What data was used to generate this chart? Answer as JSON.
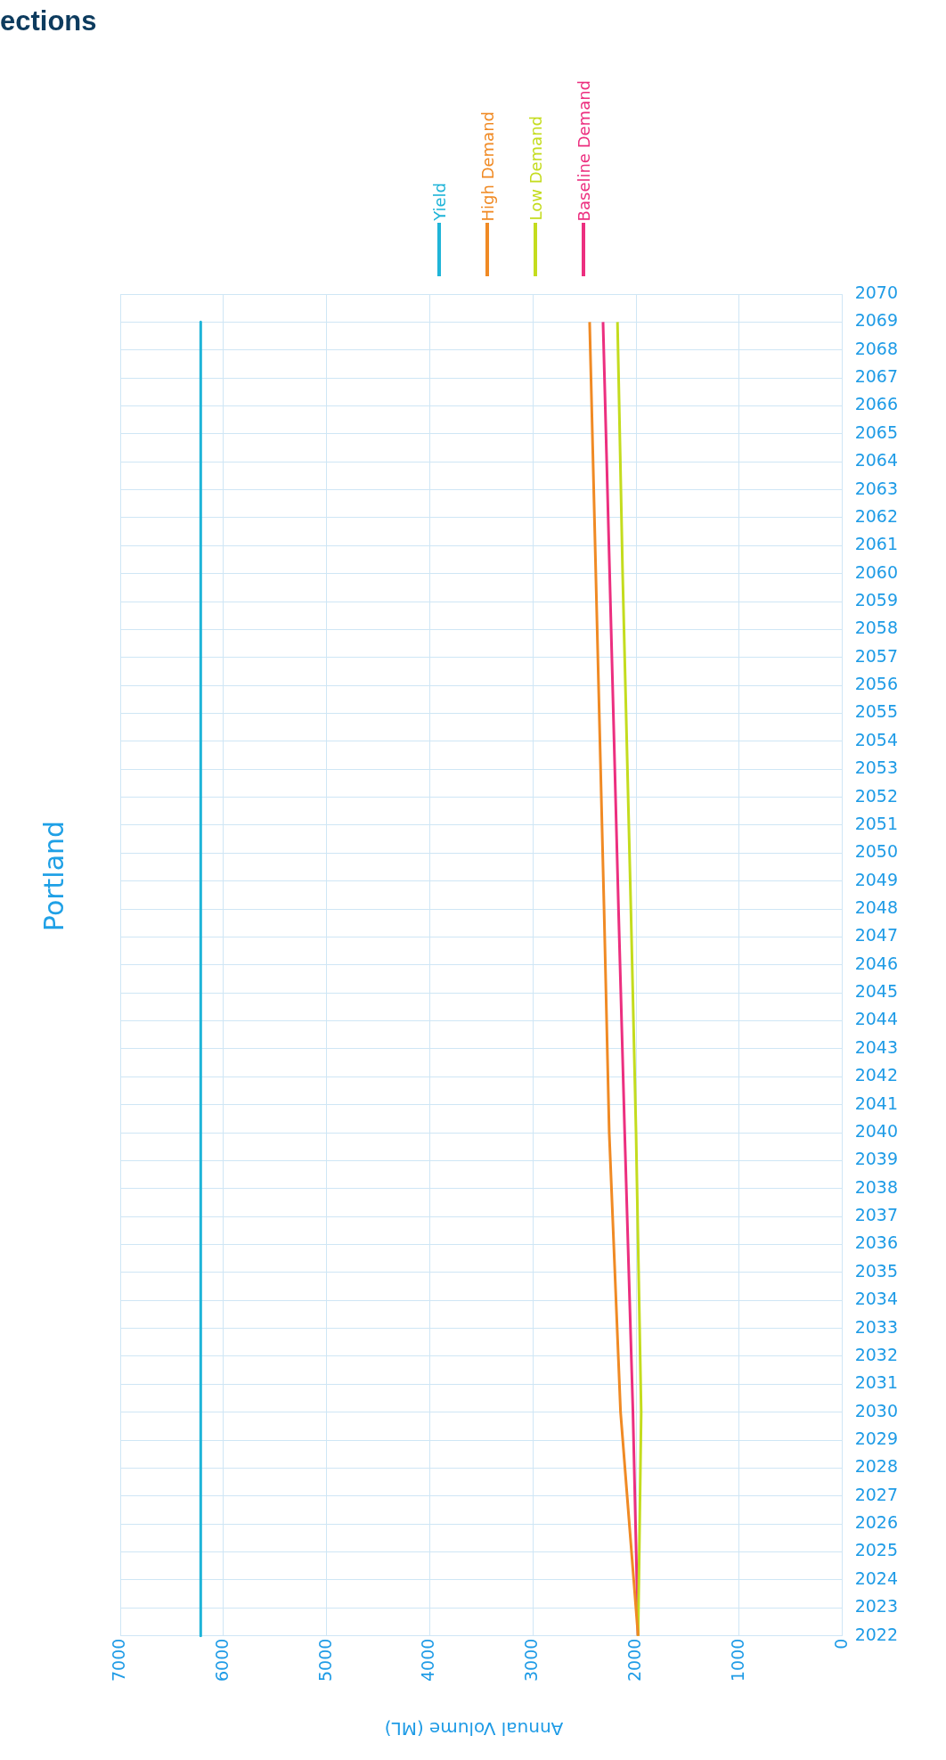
{
  "chart_data": {
    "type": "line",
    "orientation": "horizontal",
    "title": "Portland",
    "xlabel": "Annual Volume (ML)",
    "annotations": [
      "ections"
    ],
    "categories": [
      "2070",
      "2069",
      "2068",
      "2067",
      "2066",
      "2065",
      "2064",
      "2063",
      "2062",
      "2061",
      "2060",
      "2059",
      "2058",
      "2057",
      "2056",
      "2055",
      "2054",
      "2053",
      "2052",
      "2051",
      "2050",
      "2049",
      "2048",
      "2047",
      "2046",
      "2045",
      "2044",
      "2043",
      "2042",
      "2041",
      "2040",
      "2039",
      "2038",
      "2037",
      "2036",
      "2035",
      "2034",
      "2033",
      "2032",
      "2031",
      "2030",
      "2029",
      "2028",
      "2027",
      "2026",
      "2025",
      "2024",
      "2023",
      "2022"
    ],
    "xlim": [
      7000,
      0
    ],
    "xticks": [
      7000,
      6000,
      5000,
      4000,
      3000,
      2000,
      1000,
      0
    ],
    "grid": true,
    "legend": "top",
    "marker": "none",
    "line_style": "solid",
    "series": [
      {
        "name": "Yield",
        "color": "#1fb4d8",
        "values": [
          null,
          6220,
          null,
          null,
          null,
          null,
          null,
          null,
          null,
          null,
          null,
          null,
          null,
          null,
          null,
          null,
          null,
          null,
          null,
          null,
          null,
          null,
          null,
          null,
          null,
          null,
          null,
          null,
          null,
          null,
          null,
          null,
          null,
          null,
          null,
          null,
          null,
          null,
          null,
          null,
          null,
          null,
          null,
          null,
          null,
          null,
          null,
          null,
          6220
        ]
      },
      {
        "name": "High Demand",
        "color": "#f08a24",
        "values": [
          null,
          2450,
          null,
          null,
          null,
          null,
          null,
          null,
          null,
          null,
          null,
          null,
          null,
          null,
          null,
          null,
          null,
          null,
          null,
          null,
          null,
          null,
          2310,
          null,
          null,
          null,
          null,
          null,
          null,
          null,
          2260,
          null,
          null,
          null,
          null,
          null,
          null,
          null,
          null,
          null,
          2150,
          null,
          null,
          null,
          null,
          null,
          null,
          null,
          1980
        ]
      },
      {
        "name": "Low Demand",
        "color": "#c4dc1e",
        "values": [
          null,
          2180,
          null,
          null,
          null,
          null,
          null,
          null,
          null,
          null,
          2130,
          null,
          null,
          null,
          null,
          null,
          null,
          null,
          null,
          null,
          null,
          null,
          2050,
          null,
          null,
          null,
          null,
          null,
          null,
          null,
          2000,
          null,
          null,
          null,
          null,
          null,
          null,
          null,
          null,
          null,
          1950,
          null,
          null,
          null,
          null,
          null,
          null,
          null,
          1980
        ]
      },
      {
        "name": "Baseline Demand",
        "color": "#ec2f7f",
        "values": [
          null,
          2320,
          null,
          null,
          null,
          null,
          null,
          null,
          null,
          null,
          null,
          null,
          null,
          null,
          null,
          null,
          null,
          null,
          null,
          null,
          null,
          null,
          2170,
          null,
          null,
          null,
          null,
          null,
          null,
          null,
          2110,
          null,
          null,
          null,
          null,
          null,
          null,
          null,
          null,
          null,
          2030,
          null,
          null,
          null,
          null,
          null,
          null,
          null,
          1980
        ]
      }
    ]
  }
}
